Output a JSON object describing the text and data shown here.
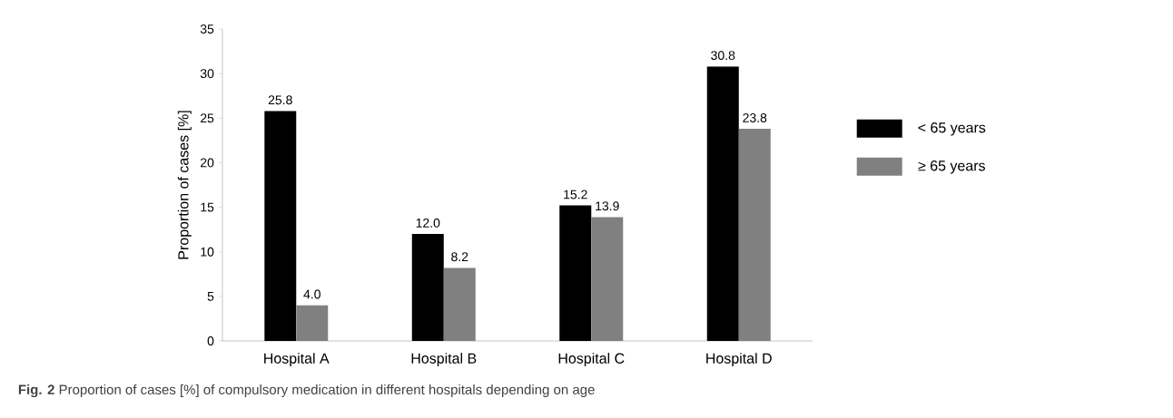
{
  "chart_data": {
    "type": "bar",
    "ylabel": "Proportion of cases [%]",
    "categories": [
      "Hospital A",
      "Hospital B",
      "Hospital C",
      "Hospital D"
    ],
    "series": [
      {
        "name": "< 65 years",
        "color": "#000000",
        "values": [
          25.8,
          12.0,
          15.2,
          30.8
        ],
        "value_labels": [
          "25.8",
          "12.0",
          "15.2",
          "30.8"
        ]
      },
      {
        "name": "≥ 65 years",
        "color": "#808080",
        "values": [
          4.0,
          8.2,
          13.9,
          23.8
        ],
        "value_labels": [
          "4.0",
          "8.2",
          "13.9",
          "23.8"
        ]
      }
    ],
    "ylim": [
      0,
      35
    ],
    "yticks": [
      0,
      5,
      10,
      15,
      20,
      25,
      30,
      35
    ],
    "grid": false,
    "legend": "right",
    "annotations": [
      "**Fig. 2** Proportion of cases [%] of compulsory medication in different hospitals depending on age"
    ]
  }
}
